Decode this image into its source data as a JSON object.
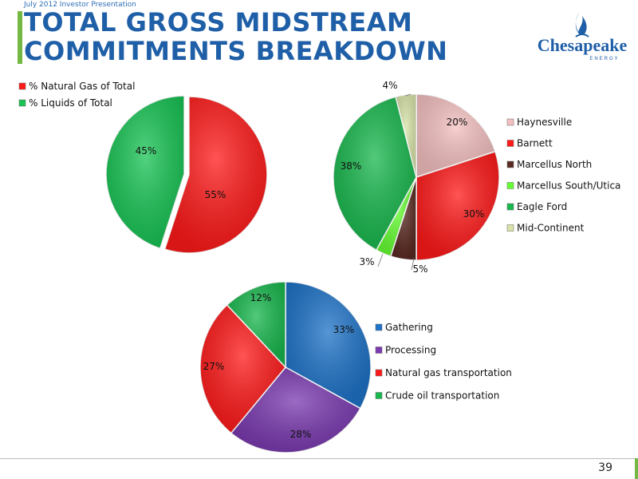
{
  "header": {
    "subtitle": "July 2012 Investor Presentation",
    "title_line1": "TOTAL GROSS MIDSTREAM",
    "title_line2": "COMMITMENTS BREAKDOWN",
    "logo_text": "Chesapeake",
    "logo_subtext": "ENERGY"
  },
  "page_number": "39",
  "chart_data": [
    {
      "type": "pie",
      "title": "",
      "series": [
        {
          "name": "% Natural Gas of Total",
          "value": 55,
          "label": "55%",
          "color": "#ff1a1a"
        },
        {
          "name": "% Liquids of Total",
          "value": 45,
          "label": "45%",
          "color": "#19c455"
        }
      ],
      "legend": "top-left"
    },
    {
      "type": "pie",
      "title": "",
      "series": [
        {
          "name": "Haynesville",
          "value": 20,
          "label": "20%",
          "color": "#f4c0c0"
        },
        {
          "name": "Barnett",
          "value": 30,
          "label": "30%",
          "color": "#ff1a1a"
        },
        {
          "name": "Marcellus North",
          "value": 5,
          "label": "5%",
          "color": "#5a2a22"
        },
        {
          "name": "Marcellus South/Utica",
          "value": 3,
          "label": "3%",
          "color": "#66ff33"
        },
        {
          "name": "Eagle Ford",
          "value": 38,
          "label": "38%",
          "color": "#19b84e"
        },
        {
          "name": "Mid-Continent",
          "value": 4,
          "label": "4%",
          "color": "#d8e4a8"
        }
      ],
      "legend": "right"
    },
    {
      "type": "pie",
      "title": "",
      "series": [
        {
          "name": "Gathering",
          "value": 33,
          "label": "33%",
          "color": "#1e73c8"
        },
        {
          "name": "Processing",
          "value": 28,
          "label": "28%",
          "color": "#7a3ab0"
        },
        {
          "name": "Natural gas transportation",
          "value": 27,
          "label": "27%",
          "color": "#ff1a1a"
        },
        {
          "name": "Crude oil transportation",
          "value": 12,
          "label": "12%",
          "color": "#19b84e"
        }
      ],
      "legend": "right"
    }
  ]
}
